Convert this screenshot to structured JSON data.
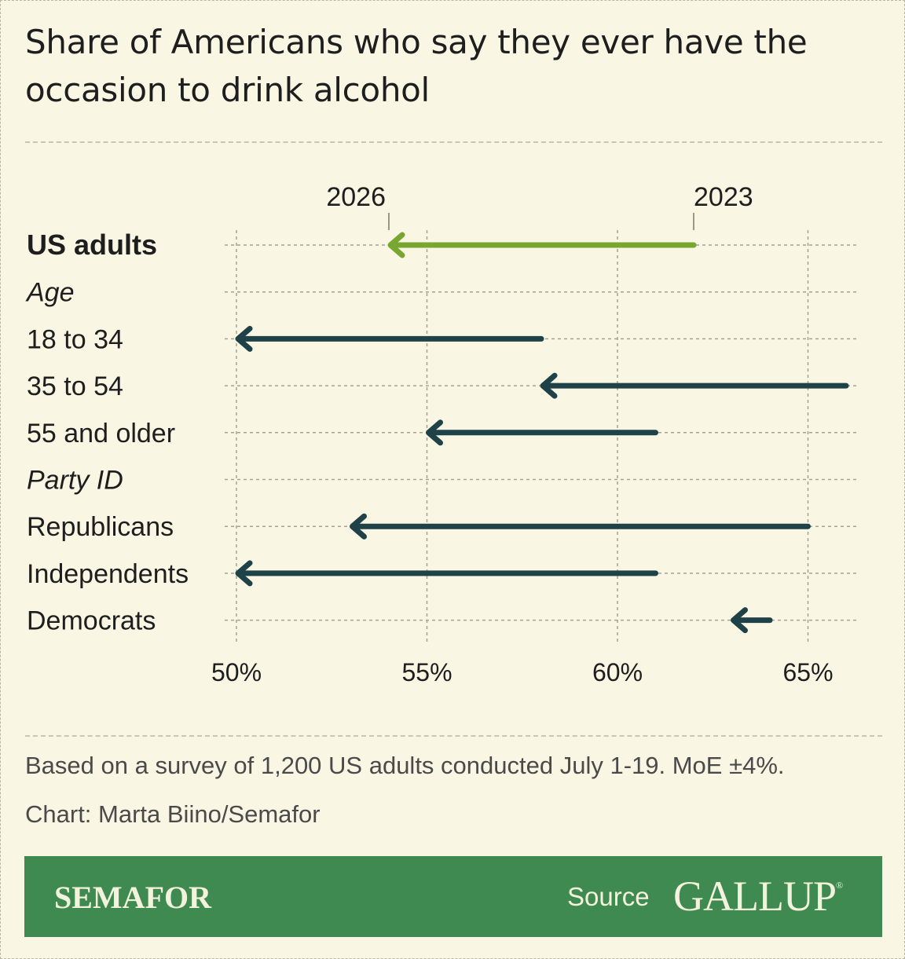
{
  "title": "Share of Americans who say they ever have the occasion to drink alcohol",
  "note": "Based on a survey of 1,200 US adults conducted July 1-19. MoE ±4%.",
  "credit": "Chart: Marta Biino/Semafor",
  "footer": {
    "brand": "SEMAFOR",
    "source_label": "Source",
    "source_name": "GALLUP"
  },
  "colors": {
    "background": "#f9f7e4",
    "highlight": "#79a630",
    "arrow": "#1f4148",
    "footer": "#3f8a51"
  },
  "chart_data": {
    "type": "arrow",
    "x_ticks": [
      50,
      55,
      60,
      65
    ],
    "x_tick_labels": [
      "50%",
      "55%",
      "60%",
      "65%"
    ],
    "xlim": [
      50,
      66
    ],
    "legend": {
      "start_label": "2023",
      "end_label": "2026"
    },
    "rows": [
      {
        "label": "US adults",
        "style": "bold",
        "start": 62,
        "end": 54,
        "highlight": true
      },
      {
        "label": "Age",
        "style": "italic"
      },
      {
        "label": "18 to 34",
        "style": "normal",
        "start": 58,
        "end": 50
      },
      {
        "label": "35 to 54",
        "style": "normal",
        "start": 66,
        "end": 58
      },
      {
        "label": "55 and older",
        "style": "normal",
        "start": 61,
        "end": 55
      },
      {
        "label": "Party ID",
        "style": "italic"
      },
      {
        "label": "Republicans",
        "style": "normal",
        "start": 65,
        "end": 53
      },
      {
        "label": "Independents",
        "style": "normal",
        "start": 61,
        "end": 50
      },
      {
        "label": "Democrats",
        "style": "normal",
        "start": 64,
        "end": 63
      }
    ]
  }
}
